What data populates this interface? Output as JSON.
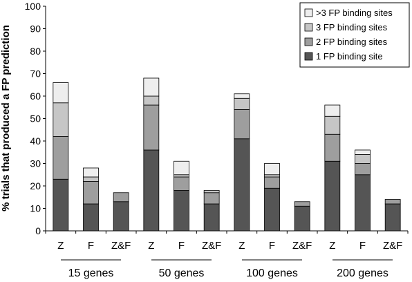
{
  "chart_data": {
    "type": "bar",
    "stacked": true,
    "ylabel": "% trials that produced a FP prediction",
    "ylim": [
      0,
      100
    ],
    "ytick_step": 10,
    "categories": [
      "Z",
      "F",
      "Z&F",
      "Z",
      "F",
      "Z&F",
      "Z",
      "F",
      "Z&F",
      "Z",
      "F",
      "Z&F"
    ],
    "groups": [
      {
        "label": "15 genes",
        "count": 3
      },
      {
        "label": "50 genes",
        "count": 3
      },
      {
        "label": "100 genes",
        "count": 3
      },
      {
        "label": "200 genes",
        "count": 3
      }
    ],
    "series": [
      {
        "name": "1 FP binding site",
        "color": "#555555",
        "values": [
          23,
          12,
          13,
          36,
          18,
          12,
          41,
          19,
          11,
          31,
          25,
          12
        ]
      },
      {
        "name": "2 FP binding sites",
        "color": "#9e9e9e",
        "values": [
          19,
          10,
          4,
          20,
          6,
          5,
          13,
          5,
          2,
          12,
          5,
          2
        ]
      },
      {
        "name": "3 FP binding sites",
        "color": "#c6c6c6",
        "values": [
          15,
          2,
          0,
          4,
          1,
          1,
          5,
          1,
          0,
          8,
          4,
          0
        ]
      },
      {
        "name": ">3 FP binding sites",
        "color": "#eeeeee",
        "values": [
          9,
          4,
          0,
          8,
          6,
          0,
          2,
          5,
          0,
          5,
          2,
          0
        ]
      }
    ],
    "legend": {
      "placement": "top-right"
    },
    "grid": false
  }
}
